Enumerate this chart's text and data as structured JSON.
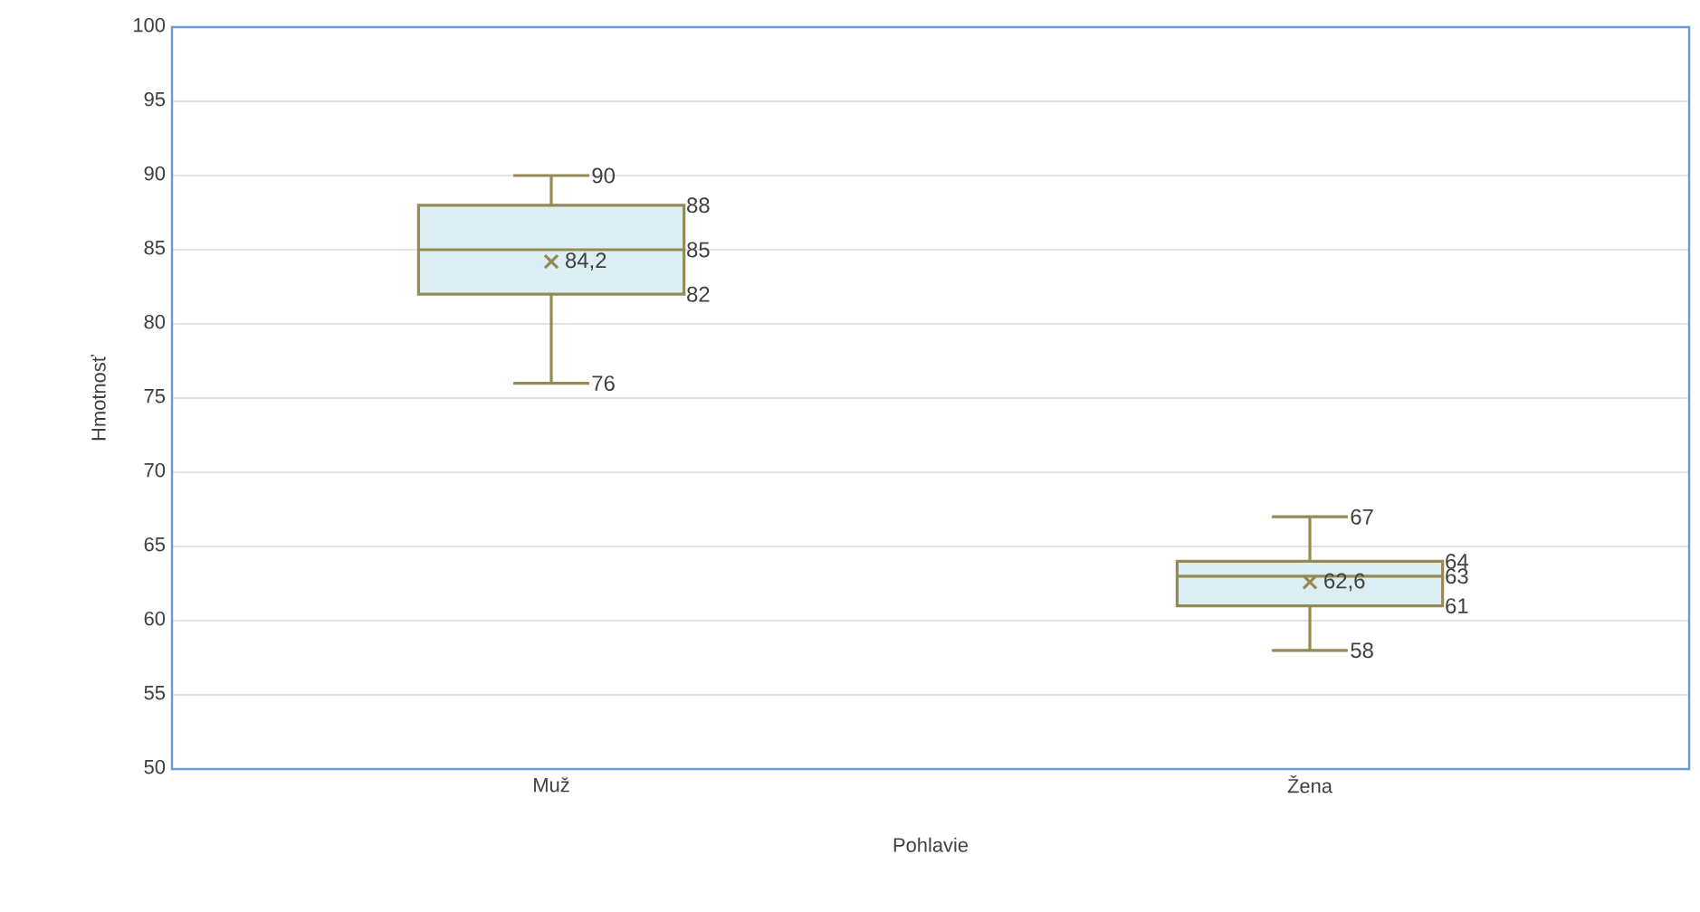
{
  "chart_data": {
    "type": "box",
    "xlabel": "Pohlavie",
    "ylabel": "Hmotnosť",
    "categories": [
      "Muž",
      "Žena"
    ],
    "boxes": [
      {
        "low": 76,
        "q1": 82,
        "median": 85,
        "q3": 88,
        "high": 90,
        "mean": 84.2
      },
      {
        "low": 58,
        "q1": 61,
        "median": 63,
        "q3": 64,
        "high": 67,
        "mean": 62.6
      }
    ],
    "color": "#948a54",
    "ylim": [
      50,
      100
    ],
    "yticks": [
      50,
      55,
      60,
      65,
      70,
      75,
      80,
      85,
      90,
      95,
      100
    ],
    "grid": "y",
    "marker": "cross",
    "annotations": [
      "90",
      "88",
      "85",
      "84,2",
      "82",
      "76",
      "67",
      "64",
      "63",
      "62,6",
      "61",
      "58"
    ]
  }
}
